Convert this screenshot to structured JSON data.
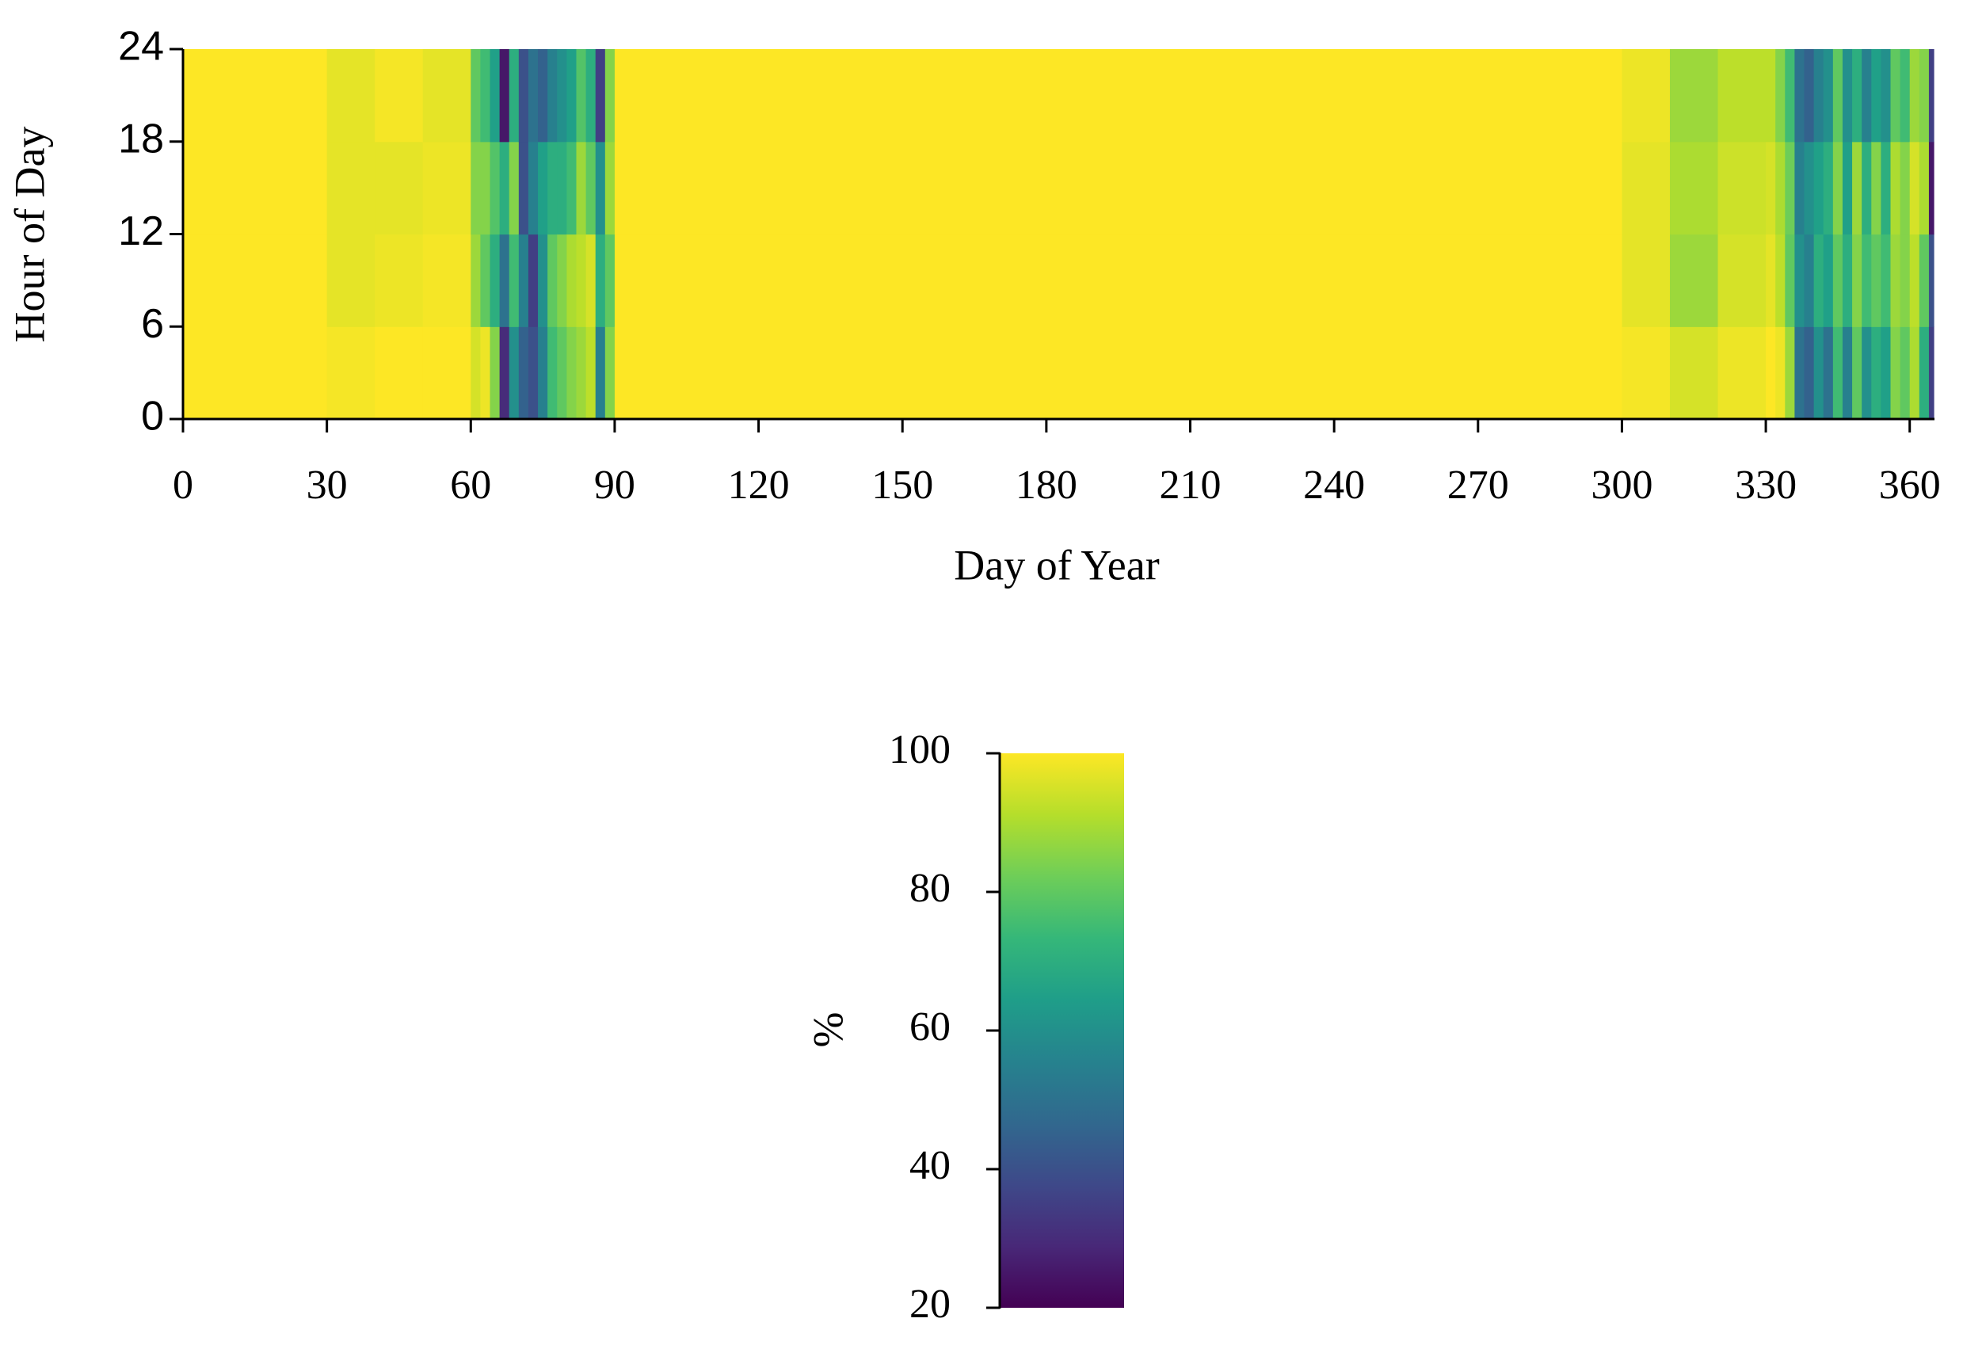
{
  "chart_data": {
    "type": "heatmap",
    "xlabel": "Day of Year",
    "ylabel": "Hour of Day",
    "colorbar_label": "%",
    "colormap": "viridis",
    "xlim": [
      0,
      365
    ],
    "xticks": [
      0,
      30,
      60,
      90,
      120,
      150,
      180,
      210,
      240,
      270,
      300,
      330,
      360
    ],
    "ylim": [
      0,
      24
    ],
    "yticks": [
      0,
      6,
      12,
      18,
      24
    ],
    "zlim": [
      20,
      100
    ],
    "zticks": [
      20,
      40,
      60,
      80,
      100
    ],
    "x_bins": [
      0,
      30,
      40,
      50,
      60,
      62,
      64,
      66,
      68,
      70,
      72,
      74,
      76,
      78,
      80,
      82,
      84,
      86,
      88,
      90,
      300,
      310,
      320,
      330,
      332,
      334,
      336,
      338,
      340,
      342,
      344,
      346,
      348,
      350,
      352,
      354,
      356,
      358,
      360,
      362,
      364,
      365
    ],
    "y_bins": [
      0,
      6,
      12,
      18,
      24
    ],
    "values": [
      [
        100,
        100,
        100,
        100
      ],
      [
        99,
        97,
        97,
        97
      ],
      [
        100,
        98,
        97,
        99
      ],
      [
        100,
        99,
        98,
        97
      ],
      [
        95,
        88,
        85,
        80
      ],
      [
        98,
        80,
        85,
        75
      ],
      [
        85,
        70,
        78,
        65
      ],
      [
        30,
        50,
        70,
        25
      ],
      [
        60,
        75,
        85,
        70
      ],
      [
        45,
        55,
        40,
        40
      ],
      [
        40,
        35,
        55,
        50
      ],
      [
        55,
        60,
        65,
        45
      ],
      [
        75,
        80,
        70,
        55
      ],
      [
        80,
        85,
        70,
        60
      ],
      [
        85,
        90,
        75,
        65
      ],
      [
        88,
        92,
        88,
        78
      ],
      [
        92,
        95,
        80,
        70
      ],
      [
        55,
        70,
        60,
        35
      ],
      [
        85,
        80,
        88,
        85
      ],
      [
        100,
        100,
        100,
        100
      ],
      [
        99,
        97,
        97,
        98
      ],
      [
        95,
        88,
        90,
        88
      ],
      [
        98,
        95,
        94,
        92
      ],
      [
        100,
        97,
        95,
        92
      ],
      [
        98,
        92,
        90,
        85
      ],
      [
        88,
        80,
        82,
        75
      ],
      [
        50,
        60,
        55,
        50
      ],
      [
        45,
        55,
        60,
        45
      ],
      [
        60,
        70,
        65,
        55
      ],
      [
        50,
        65,
        70,
        60
      ],
      [
        75,
        80,
        85,
        80
      ],
      [
        55,
        70,
        65,
        60
      ],
      [
        80,
        85,
        88,
        70
      ],
      [
        60,
        75,
        70,
        55
      ],
      [
        70,
        80,
        85,
        65
      ],
      [
        65,
        75,
        70,
        60
      ],
      [
        85,
        88,
        90,
        80
      ],
      [
        80,
        85,
        85,
        75
      ],
      [
        90,
        92,
        95,
        88
      ],
      [
        70,
        80,
        90,
        85
      ],
      [
        35,
        40,
        25,
        35
      ]
    ]
  }
}
